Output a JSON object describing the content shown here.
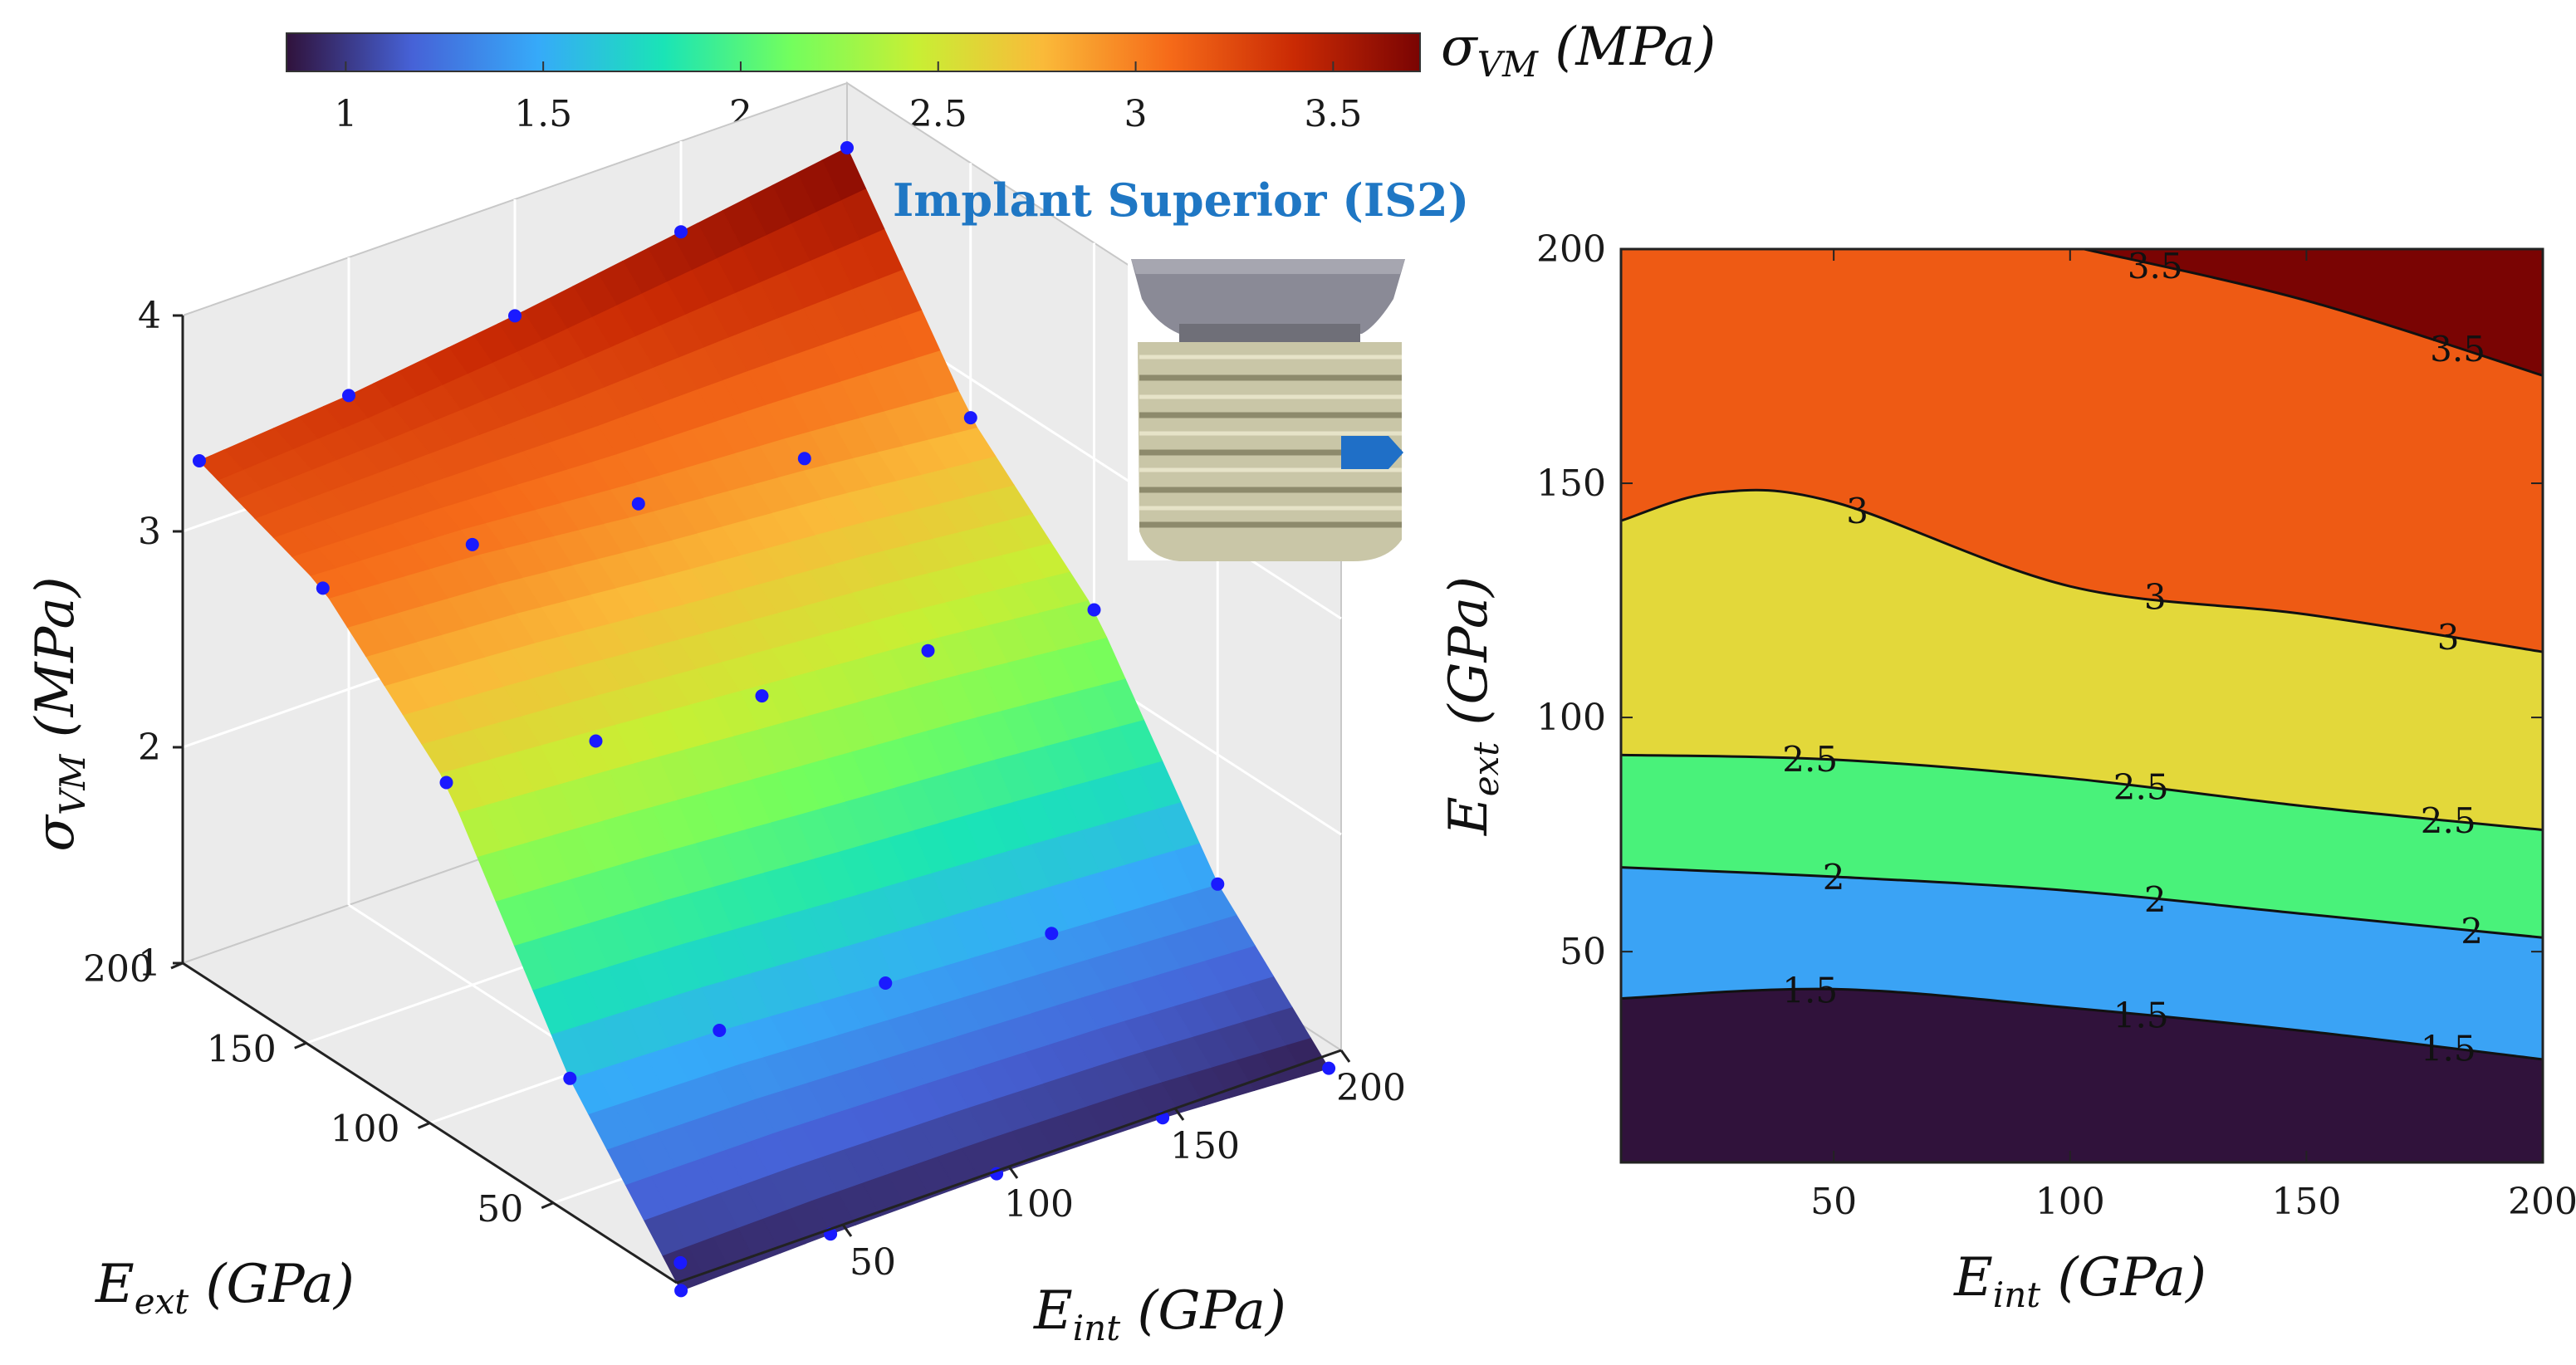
{
  "chart_data": [
    {
      "type": "colorbar",
      "label": {
        "symbol": "σ",
        "sub": "VM",
        "unit": " (MPa)"
      },
      "range": [
        0.85,
        3.72
      ],
      "ticks": [
        "1",
        "1.5",
        "2",
        "2.5",
        "3",
        "3.5"
      ],
      "tick_values": [
        1,
        1.5,
        2,
        2.5,
        3,
        3.5
      ]
    },
    {
      "type": "surface3d",
      "title": "Implant Superior (IS2)",
      "xlabel": {
        "symbol": "E",
        "sub": "int",
        "unit": " (GPa)"
      },
      "ylabel": {
        "symbol": "E",
        "sub": "ext",
        "unit": " (GPa)"
      },
      "zlabel": {
        "symbol": "σ",
        "sub": "VM",
        "unit": " (MPa)"
      },
      "xlim": [
        0,
        200
      ],
      "ylim": [
        0,
        200
      ],
      "zlim": [
        1,
        4
      ],
      "xticks": [
        "50",
        "100",
        "150",
        "200"
      ],
      "yticks": [
        "50",
        "100",
        "150",
        "200"
      ],
      "zticks": [
        "1",
        "2",
        "3",
        "4"
      ],
      "x_grid": [
        5,
        50,
        100,
        150,
        200
      ],
      "y_grid": [
        5,
        50,
        100,
        150,
        200
      ],
      "z": [
        [
          0.9,
          0.92,
          0.93,
          0.92,
          0.88
        ],
        [
          1.55,
          1.53,
          1.48,
          1.44,
          1.4
        ],
        [
          2.55,
          2.5,
          2.44,
          2.38,
          2.3
        ],
        [
          3.08,
          3.04,
          2.96,
          2.9,
          2.82
        ],
        [
          3.3,
          3.36,
          3.46,
          3.58,
          3.7
        ]
      ],
      "sample_points": [
        {
          "x": 5,
          "y": 5,
          "z": 0.9
        },
        {
          "x": 10,
          "y": 12,
          "z": 0.95
        },
        {
          "x": 50,
          "y": 5,
          "z": 0.92
        },
        {
          "x": 100,
          "y": 5,
          "z": 0.93
        },
        {
          "x": 150,
          "y": 5,
          "z": 0.92
        },
        {
          "x": 200,
          "y": 5,
          "z": 0.88
        },
        {
          "x": 5,
          "y": 50,
          "z": 1.55
        },
        {
          "x": 50,
          "y": 50,
          "z": 1.53
        },
        {
          "x": 100,
          "y": 50,
          "z": 1.48
        },
        {
          "x": 150,
          "y": 50,
          "z": 1.44
        },
        {
          "x": 200,
          "y": 50,
          "z": 1.4
        },
        {
          "x": 5,
          "y": 100,
          "z": 2.55
        },
        {
          "x": 50,
          "y": 100,
          "z": 2.5
        },
        {
          "x": 100,
          "y": 100,
          "z": 2.44
        },
        {
          "x": 150,
          "y": 100,
          "z": 2.38
        },
        {
          "x": 200,
          "y": 100,
          "z": 2.3
        },
        {
          "x": 5,
          "y": 150,
          "z": 3.08
        },
        {
          "x": 50,
          "y": 150,
          "z": 3.04
        },
        {
          "x": 100,
          "y": 150,
          "z": 2.96
        },
        {
          "x": 150,
          "y": 150,
          "z": 2.9
        },
        {
          "x": 200,
          "y": 150,
          "z": 2.82
        },
        {
          "x": 5,
          "y": 200,
          "z": 3.3
        },
        {
          "x": 50,
          "y": 200,
          "z": 3.36
        },
        {
          "x": 100,
          "y": 200,
          "z": 3.46
        },
        {
          "x": 150,
          "y": 200,
          "z": 3.58
        },
        {
          "x": 200,
          "y": 200,
          "z": 3.7
        }
      ]
    },
    {
      "type": "contour",
      "xlabel": {
        "symbol": "E",
        "sub": "int",
        "unit": " (GPa)"
      },
      "ylabel": {
        "symbol": "E",
        "sub": "ext",
        "unit": " (GPa)"
      },
      "xlim": [
        5,
        200
      ],
      "ylim": [
        5,
        200
      ],
      "xticks": [
        "50",
        "100",
        "150",
        "200"
      ],
      "xtick_values": [
        50,
        100,
        150,
        200
      ],
      "yticks": [
        "50",
        "100",
        "150",
        "200"
      ],
      "ytick_values": [
        50,
        100,
        150,
        200
      ],
      "bands": [
        {
          "from": 0.8,
          "to": 1.5,
          "color": "#30123b"
        },
        {
          "from": 1.5,
          "to": 2.0,
          "color": "#3aa3f5"
        },
        {
          "from": 2.0,
          "to": 2.5,
          "color": "#49f27a"
        },
        {
          "from": 2.5,
          "to": 3.0,
          "color": "#e3d83a"
        },
        {
          "from": 3.0,
          "to": 3.5,
          "color": "#ee5a14"
        },
        {
          "from": 3.5,
          "to": 4.0,
          "color": "#7a0403"
        }
      ],
      "contours": [
        {
          "level": 1.5,
          "points": [
            [
              5,
              40
            ],
            [
              50,
              42
            ],
            [
              100,
              38
            ],
            [
              150,
              33
            ],
            [
              200,
              27
            ]
          ],
          "labels": [
            {
              "x": 45,
              "text": "1.5"
            },
            {
              "x": 115,
              "text": "1.5"
            },
            {
              "x": 180,
              "text": "1.5"
            }
          ]
        },
        {
          "level": 2.0,
          "points": [
            [
              5,
              68
            ],
            [
              50,
              66
            ],
            [
              100,
              63
            ],
            [
              150,
              58
            ],
            [
              200,
              53
            ]
          ],
          "labels": [
            {
              "x": 50,
              "text": "2"
            },
            {
              "x": 118,
              "text": "2"
            },
            {
              "x": 185,
              "text": "2"
            }
          ]
        },
        {
          "level": 2.5,
          "points": [
            [
              5,
              92
            ],
            [
              50,
              91
            ],
            [
              100,
              87
            ],
            [
              150,
              81
            ],
            [
              200,
              76
            ]
          ],
          "labels": [
            {
              "x": 45,
              "text": "2.5"
            },
            {
              "x": 115,
              "text": "2.5"
            },
            {
              "x": 180,
              "text": "2.5"
            }
          ]
        },
        {
          "level": 3.0,
          "points": [
            [
              5,
              142
            ],
            [
              25,
              148
            ],
            [
              50,
              146
            ],
            [
              100,
              128
            ],
            [
              150,
              122
            ],
            [
              200,
              114
            ]
          ],
          "labels": [
            {
              "x": 55,
              "text": "3"
            },
            {
              "x": 118,
              "text": "3"
            },
            {
              "x": 180,
              "text": "3"
            }
          ]
        },
        {
          "level": 3.5,
          "points": [
            [
              103,
              200
            ],
            [
              150,
              189
            ],
            [
              200,
              173
            ]
          ],
          "labels": [
            {
              "x": 118,
              "text": "3.5"
            },
            {
              "x": 182,
              "text": "3.5"
            }
          ]
        }
      ]
    }
  ],
  "colormap": [
    "#30123b",
    "#4662d7",
    "#36aaf9",
    "#1ae4b6",
    "#72fe5e",
    "#c8ef34",
    "#faba39",
    "#f66b19",
    "#ca2a04",
    "#7a0403"
  ]
}
